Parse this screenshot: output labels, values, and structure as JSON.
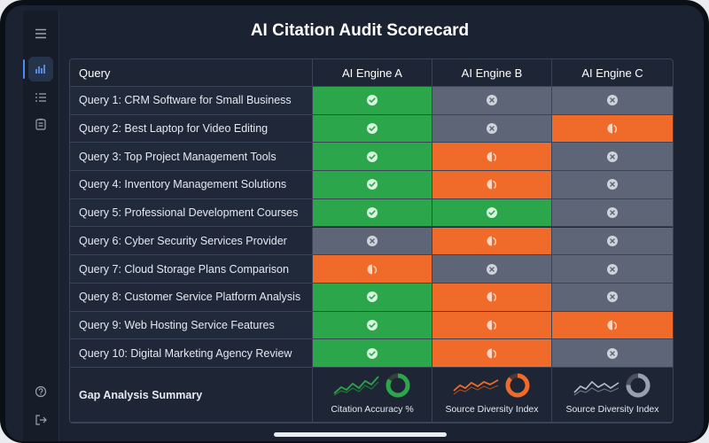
{
  "title": "AI Citation Audit Scorecard",
  "columns": [
    "Query",
    "AI Engine A",
    "AI Engine B",
    "AI Engine C"
  ],
  "legend_colors": {
    "cited": "#2ca64a",
    "not_cited": "#5d6576",
    "partial": "#f06a2a"
  },
  "rows": [
    {
      "query": "Query 1: CRM Software for Small Business",
      "a": "cited",
      "b": "not_cited",
      "c": "not_cited"
    },
    {
      "query": "Query 2: Best Laptop for Video Editing",
      "a": "cited",
      "b": "not_cited",
      "c": "partial"
    },
    {
      "query": "Query 3: Top Project Management Tools",
      "a": "cited",
      "b": "partial",
      "c": "not_cited"
    },
    {
      "query": "Query 4: Inventory Management Solutions",
      "a": "cited",
      "b": "partial",
      "c": "not_cited"
    },
    {
      "query": "Query 5: Professional Development Courses",
      "a": "cited",
      "b": "cited",
      "c": "not_cited"
    },
    {
      "query": "Query 6: Cyber Security Services Provider",
      "a": "not_cited",
      "b": "partial",
      "c": "not_cited"
    },
    {
      "query": "Query 7: Cloud Storage Plans Comparison",
      "a": "partial",
      "b": "not_cited",
      "c": "not_cited"
    },
    {
      "query": "Query 8: Customer Service Platform Analysis",
      "a": "cited",
      "b": "partial",
      "c": "not_cited"
    },
    {
      "query": "Query 9: Web Hosting Service Features",
      "a": "cited",
      "b": "partial",
      "c": "partial"
    },
    {
      "query": "Query 10: Digital Marketing Agency Review",
      "a": "cited",
      "b": "partial",
      "c": "not_cited"
    }
  ],
  "summary": {
    "label": "Gap Analysis Summary",
    "metrics": [
      {
        "label": "Citation Accuracy %",
        "color": "#2ca64a"
      },
      {
        "label": "Source Diversity Index",
        "color": "#f06a2a"
      },
      {
        "label": "Source Diversity Index",
        "color": "#9aa1ae"
      }
    ]
  },
  "sidebar_icons": [
    "menu-icon",
    "bar-chart-icon",
    "list-icon",
    "clipboard-icon",
    "help-icon",
    "logout-icon"
  ]
}
